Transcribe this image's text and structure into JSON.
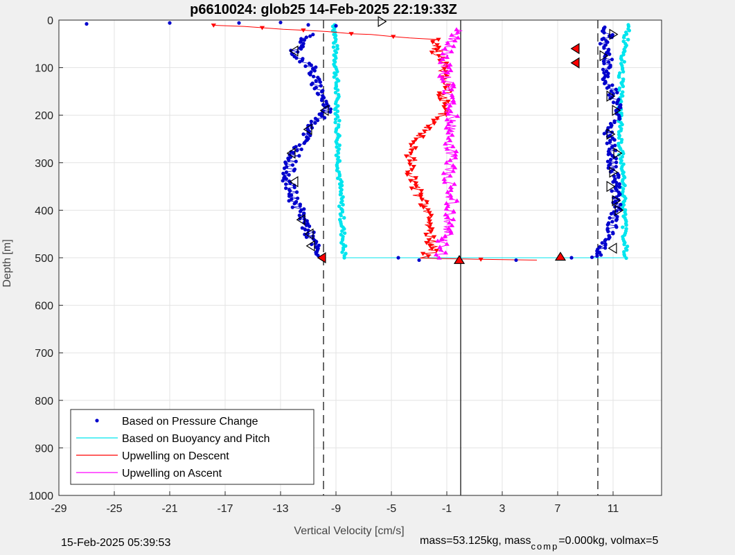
{
  "chart_data": {
    "type": "scatter",
    "title": "p6610024: glob25 14-Feb-2025 22:19:33Z",
    "xlabel": "Vertical Velocity [cm/s]",
    "ylabel": "Depth [m]",
    "xlim": [
      -29,
      14.5
    ],
    "ylim": [
      1000,
      0
    ],
    "x_ticks": [
      -29,
      -25,
      -21,
      -17,
      -13,
      -9,
      -5,
      -1,
      3,
      7,
      11
    ],
    "y_ticks": [
      0,
      100,
      200,
      300,
      400,
      500,
      600,
      700,
      800,
      900,
      1000
    ],
    "grid": true,
    "legend_position": "bottom-left",
    "reference_lines": {
      "dashed_x": [
        -9.9,
        9.9
      ],
      "solid_x": [
        0
      ]
    },
    "series": [
      {
        "name": "Based on Pressure Change",
        "color": "#0000cc",
        "style": "dots",
        "descent": [
          [
            -11.0,
            30
          ],
          [
            -11.5,
            50
          ],
          [
            -12.0,
            70
          ],
          [
            -10.8,
            100
          ],
          [
            -10.5,
            130
          ],
          [
            -10.0,
            160
          ],
          [
            -9.6,
            190
          ],
          [
            -10.6,
            220
          ],
          [
            -11.5,
            260
          ],
          [
            -12.3,
            300
          ],
          [
            -12.5,
            340
          ],
          [
            -12.0,
            380
          ],
          [
            -11.3,
            420
          ],
          [
            -10.8,
            460
          ],
          [
            -10.3,
            495
          ]
        ],
        "ascent": [
          [
            9.6,
            500
          ],
          [
            10.3,
            480
          ],
          [
            10.8,
            450
          ],
          [
            11.1,
            410
          ],
          [
            11.3,
            380
          ],
          [
            11.2,
            340
          ],
          [
            10.9,
            300
          ],
          [
            10.9,
            260
          ],
          [
            10.6,
            230
          ],
          [
            11.5,
            200
          ],
          [
            11.2,
            170
          ],
          [
            10.8,
            140
          ],
          [
            10.4,
            110
          ],
          [
            10.6,
            80
          ],
          [
            10.3,
            50
          ],
          [
            10.7,
            30
          ],
          [
            10.4,
            15
          ]
        ],
        "transitions": [
          [
            -27,
            8
          ],
          [
            -21,
            6
          ],
          [
            -16,
            6
          ],
          [
            -13,
            5
          ],
          [
            -11,
            10
          ],
          [
            -9,
            12
          ],
          [
            -4.5,
            500
          ],
          [
            -3,
            505
          ],
          [
            0,
            505
          ],
          [
            4,
            505
          ],
          [
            8,
            500
          ]
        ]
      },
      {
        "name": "Based on Buoyancy and Pitch",
        "color": "#00e5ee",
        "style": "line-dots",
        "descent": [
          [
            -9.1,
            10
          ],
          [
            -9.0,
            100
          ],
          [
            -8.9,
            200
          ],
          [
            -8.8,
            300
          ],
          [
            -8.6,
            400
          ],
          [
            -8.4,
            500
          ]
        ],
        "ascent": [
          [
            11.9,
            500
          ],
          [
            11.8,
            400
          ],
          [
            11.6,
            300
          ],
          [
            11.5,
            200
          ],
          [
            11.6,
            100
          ],
          [
            12.1,
            10
          ]
        ],
        "bottom_link": [
          [
            -8.4,
            500
          ],
          [
            11.9,
            500
          ]
        ]
      },
      {
        "name": "Upwelling on Descent",
        "color": "#ff0000",
        "style": "line-triangles-down",
        "points": [
          [
            -17.5,
            10
          ],
          [
            -2.0,
            40
          ],
          [
            -1.5,
            80
          ],
          [
            -1.0,
            120
          ],
          [
            -1.2,
            160
          ],
          [
            -1.3,
            200
          ],
          [
            -2.8,
            240
          ],
          [
            -3.5,
            280
          ],
          [
            -3.6,
            320
          ],
          [
            -3.2,
            360
          ],
          [
            -2.4,
            400
          ],
          [
            -2.3,
            440
          ],
          [
            -2.0,
            480
          ],
          [
            -2.5,
            500
          ],
          [
            5.5,
            505
          ]
        ]
      },
      {
        "name": "Upwelling on Ascent",
        "color": "#ff00ff",
        "style": "line-triangles-up",
        "points": [
          [
            -1.5,
            500
          ],
          [
            -1.2,
            460
          ],
          [
            -0.8,
            420
          ],
          [
            -0.6,
            380
          ],
          [
            -0.9,
            340
          ],
          [
            -0.7,
            300
          ],
          [
            -0.8,
            260
          ],
          [
            -0.6,
            220
          ],
          [
            -0.7,
            180
          ],
          [
            -0.9,
            140
          ],
          [
            -1.2,
            100
          ],
          [
            -1.0,
            60
          ],
          [
            -0.3,
            20
          ]
        ]
      }
    ],
    "markers": {
      "open_right": [
        [
          -5.7,
          3
        ],
        [
          11.0,
          30
        ],
        [
          10.3,
          75
        ],
        [
          10.8,
          160
        ],
        [
          11.2,
          190
        ],
        [
          10.8,
          240
        ],
        [
          11.3,
          280
        ],
        [
          11.0,
          320
        ],
        [
          10.8,
          350
        ],
        [
          11.2,
          380
        ],
        [
          11.4,
          400
        ]
      ],
      "open_left": [
        [
          -12.0,
          65
        ],
        [
          -9.8,
          190
        ],
        [
          -11.0,
          230
        ],
        [
          -12.2,
          280
        ],
        [
          -12.0,
          340
        ],
        [
          -11.5,
          420
        ],
        [
          -10.9,
          450
        ],
        [
          -10.8,
          475
        ],
        [
          11.0,
          480
        ]
      ],
      "filled_left": [
        [
          8.3,
          60
        ],
        [
          8.3,
          90
        ],
        [
          -10.0,
          500
        ]
      ],
      "filled_up": [
        [
          7.2,
          498
        ],
        [
          -0.1,
          505
        ]
      ]
    }
  },
  "footer": {
    "timestamp": "15-Feb-2025 05:39:53",
    "mass_text": "mass=53.125kg, mass",
    "sub_text": "comp",
    "rest_text": "=0.000kg, volmax=5"
  }
}
